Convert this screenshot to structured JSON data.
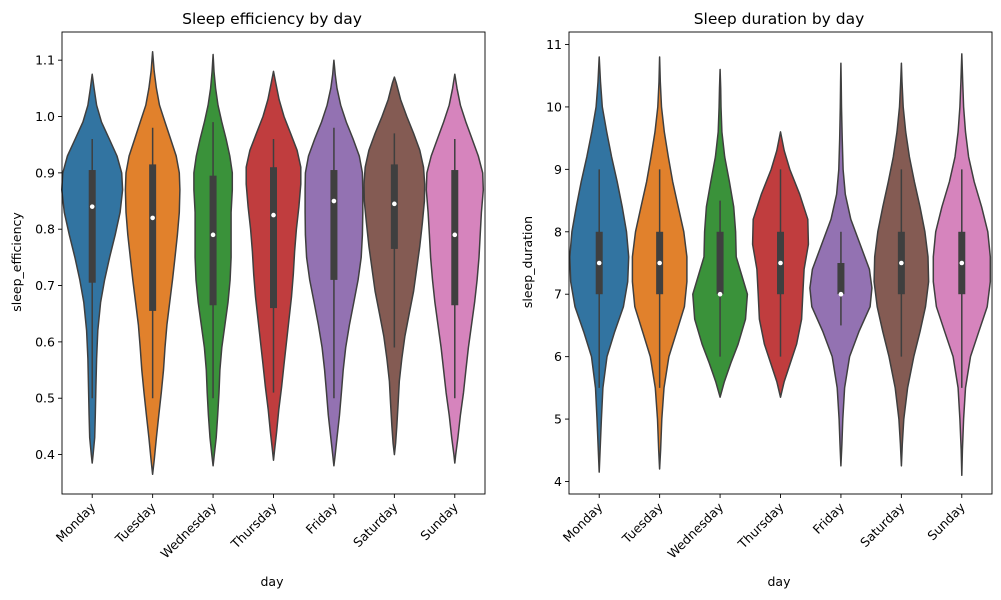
{
  "chart_data": [
    {
      "type": "violin",
      "title": "Sleep efficiency by day",
      "xlabel": "day",
      "ylabel": "sleep_efficiency",
      "categories": [
        "Monday",
        "Tuesday",
        "Wednesday",
        "Thursday",
        "Friday",
        "Saturday",
        "Sunday"
      ],
      "ylim": [
        0.33,
        1.15
      ],
      "yticks": [
        "0.4",
        "0.5",
        "0.6",
        "0.7",
        "0.8",
        "0.9",
        "1.0",
        "1.1"
      ],
      "ytick_values": [
        0.4,
        0.5,
        0.6,
        0.7,
        0.8,
        0.9,
        1.0,
        1.1
      ],
      "colors": [
        "#3274a1",
        "#e1812c",
        "#3a923a",
        "#c03d3e",
        "#9372b2",
        "#845b53",
        "#d684bd"
      ],
      "box": [
        {
          "q1": 0.705,
          "median": 0.84,
          "q3": 0.905,
          "whisker_low": 0.5,
          "whisker_high": 0.96
        },
        {
          "q1": 0.655,
          "median": 0.82,
          "q3": 0.915,
          "whisker_low": 0.5,
          "whisker_high": 0.98
        },
        {
          "q1": 0.665,
          "median": 0.79,
          "q3": 0.895,
          "whisker_low": 0.5,
          "whisker_high": 0.99
        },
        {
          "q1": 0.66,
          "median": 0.825,
          "q3": 0.91,
          "whisker_low": 0.51,
          "whisker_high": 0.96
        },
        {
          "q1": 0.71,
          "median": 0.85,
          "q3": 0.905,
          "whisker_low": 0.5,
          "whisker_high": 0.98
        },
        {
          "q1": 0.765,
          "median": 0.845,
          "q3": 0.915,
          "whisker_low": 0.59,
          "whisker_high": 0.97
        },
        {
          "q1": 0.665,
          "median": 0.79,
          "q3": 0.905,
          "whisker_low": 0.5,
          "whisker_high": 0.96
        }
      ],
      "density": [
        [
          [
            0.385,
            0
          ],
          [
            0.4,
            0.03
          ],
          [
            0.43,
            0.08
          ],
          [
            0.47,
            0.1
          ],
          [
            0.52,
            0.12
          ],
          [
            0.57,
            0.14
          ],
          [
            0.62,
            0.18
          ],
          [
            0.67,
            0.27
          ],
          [
            0.71,
            0.4
          ],
          [
            0.75,
            0.56
          ],
          [
            0.79,
            0.74
          ],
          [
            0.83,
            0.9
          ],
          [
            0.87,
            0.98
          ],
          [
            0.9,
            0.95
          ],
          [
            0.93,
            0.8
          ],
          [
            0.96,
            0.55
          ],
          [
            0.99,
            0.3
          ],
          [
            1.02,
            0.14
          ],
          [
            1.05,
            0.06
          ],
          [
            1.075,
            0
          ]
        ],
        [
          [
            0.365,
            0
          ],
          [
            0.39,
            0.05
          ],
          [
            0.43,
            0.12
          ],
          [
            0.47,
            0.2
          ],
          [
            0.51,
            0.28
          ],
          [
            0.55,
            0.35
          ],
          [
            0.59,
            0.4
          ],
          [
            0.63,
            0.46
          ],
          [
            0.67,
            0.55
          ],
          [
            0.71,
            0.64
          ],
          [
            0.75,
            0.72
          ],
          [
            0.79,
            0.8
          ],
          [
            0.83,
            0.86
          ],
          [
            0.87,
            0.88
          ],
          [
            0.9,
            0.86
          ],
          [
            0.93,
            0.76
          ],
          [
            0.96,
            0.58
          ],
          [
            0.99,
            0.4
          ],
          [
            1.02,
            0.22
          ],
          [
            1.05,
            0.12
          ],
          [
            1.08,
            0.05
          ],
          [
            1.115,
            0
          ]
        ],
        [
          [
            0.38,
            0
          ],
          [
            0.4,
            0.04
          ],
          [
            0.43,
            0.1
          ],
          [
            0.47,
            0.15
          ],
          [
            0.51,
            0.19
          ],
          [
            0.55,
            0.22
          ],
          [
            0.59,
            0.28
          ],
          [
            0.63,
            0.38
          ],
          [
            0.67,
            0.48
          ],
          [
            0.71,
            0.55
          ],
          [
            0.75,
            0.58
          ],
          [
            0.79,
            0.58
          ],
          [
            0.83,
            0.58
          ],
          [
            0.87,
            0.62
          ],
          [
            0.9,
            0.62
          ],
          [
            0.93,
            0.54
          ],
          [
            0.96,
            0.42
          ],
          [
            0.99,
            0.28
          ],
          [
            1.02,
            0.16
          ],
          [
            1.05,
            0.08
          ],
          [
            1.08,
            0.03
          ],
          [
            1.11,
            0
          ]
        ],
        [
          [
            0.39,
            0
          ],
          [
            0.41,
            0.04
          ],
          [
            0.44,
            0.1
          ],
          [
            0.48,
            0.17
          ],
          [
            0.52,
            0.26
          ],
          [
            0.56,
            0.34
          ],
          [
            0.6,
            0.42
          ],
          [
            0.64,
            0.5
          ],
          [
            0.68,
            0.58
          ],
          [
            0.72,
            0.64
          ],
          [
            0.76,
            0.68
          ],
          [
            0.8,
            0.74
          ],
          [
            0.84,
            0.82
          ],
          [
            0.88,
            0.88
          ],
          [
            0.91,
            0.88
          ],
          [
            0.94,
            0.76
          ],
          [
            0.97,
            0.55
          ],
          [
            1.0,
            0.34
          ],
          [
            1.03,
            0.18
          ],
          [
            1.06,
            0.07
          ],
          [
            1.08,
            0
          ]
        ],
        [
          [
            0.38,
            0
          ],
          [
            0.4,
            0.04
          ],
          [
            0.43,
            0.1
          ],
          [
            0.47,
            0.18
          ],
          [
            0.51,
            0.24
          ],
          [
            0.55,
            0.3
          ],
          [
            0.59,
            0.38
          ],
          [
            0.63,
            0.5
          ],
          [
            0.67,
            0.64
          ],
          [
            0.71,
            0.78
          ],
          [
            0.75,
            0.88
          ],
          [
            0.79,
            0.92
          ],
          [
            0.83,
            0.93
          ],
          [
            0.87,
            0.93
          ],
          [
            0.9,
            0.92
          ],
          [
            0.93,
            0.82
          ],
          [
            0.96,
            0.62
          ],
          [
            0.99,
            0.4
          ],
          [
            1.02,
            0.22
          ],
          [
            1.05,
            0.1
          ],
          [
            1.075,
            0.04
          ],
          [
            1.1,
            0
          ]
        ],
        [
          [
            0.4,
            0
          ],
          [
            0.42,
            0.04
          ],
          [
            0.45,
            0.08
          ],
          [
            0.49,
            0.12
          ],
          [
            0.53,
            0.16
          ],
          [
            0.57,
            0.24
          ],
          [
            0.61,
            0.34
          ],
          [
            0.65,
            0.48
          ],
          [
            0.69,
            0.62
          ],
          [
            0.73,
            0.72
          ],
          [
            0.77,
            0.82
          ],
          [
            0.81,
            0.9
          ],
          [
            0.85,
            0.97
          ],
          [
            0.88,
            0.98
          ],
          [
            0.91,
            0.94
          ],
          [
            0.94,
            0.82
          ],
          [
            0.97,
            0.62
          ],
          [
            1.0,
            0.4
          ],
          [
            1.03,
            0.2
          ],
          [
            1.06,
            0.06
          ],
          [
            1.07,
            0
          ]
        ],
        [
          [
            0.385,
            0
          ],
          [
            0.4,
            0.03
          ],
          [
            0.43,
            0.1
          ],
          [
            0.47,
            0.18
          ],
          [
            0.51,
            0.28
          ],
          [
            0.55,
            0.36
          ],
          [
            0.59,
            0.44
          ],
          [
            0.63,
            0.54
          ],
          [
            0.67,
            0.64
          ],
          [
            0.71,
            0.72
          ],
          [
            0.75,
            0.78
          ],
          [
            0.79,
            0.82
          ],
          [
            0.83,
            0.86
          ],
          [
            0.87,
            0.92
          ],
          [
            0.9,
            0.9
          ],
          [
            0.93,
            0.76
          ],
          [
            0.96,
            0.56
          ],
          [
            0.99,
            0.36
          ],
          [
            1.02,
            0.18
          ],
          [
            1.05,
            0.07
          ],
          [
            1.075,
            0
          ]
        ]
      ]
    },
    {
      "type": "violin",
      "title": "Sleep duration by day",
      "xlabel": "day",
      "ylabel": "sleep_duration",
      "categories": [
        "Monday",
        "Tuesday",
        "Wednesday",
        "Thursday",
        "Friday",
        "Saturday",
        "Sunday"
      ],
      "ylim": [
        3.8,
        11.2
      ],
      "yticks": [
        "4",
        "5",
        "6",
        "7",
        "8",
        "9",
        "10",
        "11"
      ],
      "ytick_values": [
        4,
        5,
        6,
        7,
        8,
        9,
        10,
        11
      ],
      "colors": [
        "#3274a1",
        "#e1812c",
        "#3a923a",
        "#c03d3e",
        "#9372b2",
        "#845b53",
        "#d684bd"
      ],
      "box": [
        {
          "q1": 7.0,
          "median": 7.5,
          "q3": 8.0,
          "whisker_low": 5.5,
          "whisker_high": 9.0
        },
        {
          "q1": 7.0,
          "median": 7.5,
          "q3": 8.0,
          "whisker_low": 5.5,
          "whisker_high": 9.0
        },
        {
          "q1": 7.0,
          "median": 7.0,
          "q3": 8.0,
          "whisker_low": 6.0,
          "whisker_high": 8.5
        },
        {
          "q1": 7.0,
          "median": 7.5,
          "q3": 8.0,
          "whisker_low": 6.0,
          "whisker_high": 9.0
        },
        {
          "q1": 7.0,
          "median": 7.0,
          "q3": 7.5,
          "whisker_low": 6.5,
          "whisker_high": 8.0
        },
        {
          "q1": 7.0,
          "median": 7.5,
          "q3": 8.0,
          "whisker_low": 6.0,
          "whisker_high": 9.0
        },
        {
          "q1": 7.0,
          "median": 7.5,
          "q3": 8.0,
          "whisker_low": 5.5,
          "whisker_high": 9.0
        }
      ],
      "density": [
        [
          [
            4.15,
            0
          ],
          [
            4.5,
            0.03
          ],
          [
            5.0,
            0.07
          ],
          [
            5.5,
            0.12
          ],
          [
            6.0,
            0.25
          ],
          [
            6.4,
            0.5
          ],
          [
            6.8,
            0.78
          ],
          [
            7.2,
            0.92
          ],
          [
            7.6,
            0.95
          ],
          [
            8.0,
            0.88
          ],
          [
            8.4,
            0.74
          ],
          [
            8.8,
            0.58
          ],
          [
            9.2,
            0.4
          ],
          [
            9.6,
            0.24
          ],
          [
            10.0,
            0.1
          ],
          [
            10.4,
            0.04
          ],
          [
            10.8,
            0
          ]
        ],
        [
          [
            4.2,
            0
          ],
          [
            4.5,
            0.03
          ],
          [
            5.0,
            0.07
          ],
          [
            5.5,
            0.14
          ],
          [
            6.0,
            0.3
          ],
          [
            6.4,
            0.55
          ],
          [
            6.8,
            0.8
          ],
          [
            7.2,
            0.88
          ],
          [
            7.6,
            0.88
          ],
          [
            8.0,
            0.78
          ],
          [
            8.4,
            0.6
          ],
          [
            8.8,
            0.42
          ],
          [
            9.2,
            0.28
          ],
          [
            9.6,
            0.15
          ],
          [
            10.0,
            0.06
          ],
          [
            10.4,
            0.02
          ],
          [
            10.8,
            0
          ]
        ],
        [
          [
            5.35,
            0
          ],
          [
            5.6,
            0.14
          ],
          [
            5.9,
            0.35
          ],
          [
            6.2,
            0.58
          ],
          [
            6.6,
            0.82
          ],
          [
            7.0,
            0.88
          ],
          [
            7.3,
            0.7
          ],
          [
            7.6,
            0.52
          ],
          [
            8.0,
            0.5
          ],
          [
            8.4,
            0.44
          ],
          [
            8.8,
            0.3
          ],
          [
            9.2,
            0.15
          ],
          [
            9.6,
            0.06
          ],
          [
            10.0,
            0.03
          ],
          [
            10.3,
            0.02
          ],
          [
            10.6,
            0
          ]
        ],
        [
          [
            5.35,
            0
          ],
          [
            5.6,
            0.12
          ],
          [
            5.9,
            0.32
          ],
          [
            6.2,
            0.52
          ],
          [
            6.6,
            0.68
          ],
          [
            7.0,
            0.72
          ],
          [
            7.4,
            0.76
          ],
          [
            7.8,
            0.9
          ],
          [
            8.2,
            0.88
          ],
          [
            8.6,
            0.62
          ],
          [
            9.0,
            0.3
          ],
          [
            9.3,
            0.12
          ],
          [
            9.6,
            0
          ]
        ],
        [
          [
            4.25,
            0
          ],
          [
            4.6,
            0.03
          ],
          [
            5.0,
            0.06
          ],
          [
            5.5,
            0.12
          ],
          [
            6.0,
            0.28
          ],
          [
            6.4,
            0.58
          ],
          [
            6.8,
            0.94
          ],
          [
            7.1,
            1.0
          ],
          [
            7.4,
            0.92
          ],
          [
            7.8,
            0.62
          ],
          [
            8.2,
            0.32
          ],
          [
            8.6,
            0.14
          ],
          [
            9.0,
            0.07
          ],
          [
            9.5,
            0.04
          ],
          [
            10.0,
            0.02
          ],
          [
            10.4,
            0.01
          ],
          [
            10.7,
            0
          ]
        ],
        [
          [
            4.25,
            0
          ],
          [
            4.6,
            0.03
          ],
          [
            5.0,
            0.08
          ],
          [
            5.5,
            0.2
          ],
          [
            6.0,
            0.4
          ],
          [
            6.4,
            0.6
          ],
          [
            6.8,
            0.78
          ],
          [
            7.2,
            0.88
          ],
          [
            7.6,
            0.86
          ],
          [
            8.0,
            0.76
          ],
          [
            8.4,
            0.6
          ],
          [
            8.8,
            0.42
          ],
          [
            9.2,
            0.26
          ],
          [
            9.6,
            0.14
          ],
          [
            10.0,
            0.06
          ],
          [
            10.4,
            0.02
          ],
          [
            10.7,
            0
          ]
        ],
        [
          [
            4.1,
            0
          ],
          [
            4.5,
            0.02
          ],
          [
            5.0,
            0.06
          ],
          [
            5.5,
            0.12
          ],
          [
            6.0,
            0.28
          ],
          [
            6.4,
            0.55
          ],
          [
            6.8,
            0.82
          ],
          [
            7.2,
            0.92
          ],
          [
            7.6,
            0.92
          ],
          [
            8.0,
            0.84
          ],
          [
            8.4,
            0.64
          ],
          [
            8.8,
            0.4
          ],
          [
            9.2,
            0.22
          ],
          [
            9.6,
            0.12
          ],
          [
            10.0,
            0.06
          ],
          [
            10.4,
            0.03
          ],
          [
            10.85,
            0
          ]
        ]
      ]
    }
  ]
}
